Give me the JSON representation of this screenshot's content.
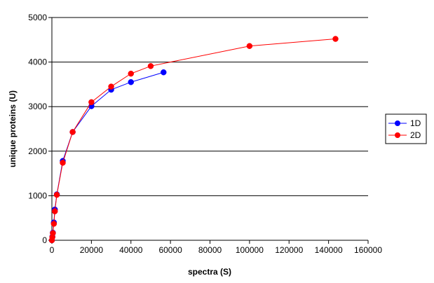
{
  "chart_data": {
    "type": "line",
    "title": "",
    "xlabel": "spectra (S)",
    "ylabel": "unique proteins (U)",
    "xlim": [
      0,
      160000
    ],
    "ylim": [
      0,
      5000
    ],
    "x_ticks": [
      0,
      20000,
      40000,
      60000,
      80000,
      100000,
      120000,
      140000,
      160000
    ],
    "y_ticks": [
      0,
      1000,
      2000,
      3000,
      4000,
      5000
    ],
    "x_tick_labels": [
      "0",
      "20000",
      "40000",
      "60000",
      "80000",
      "100000",
      "120000",
      "140000",
      "160000"
    ],
    "y_tick_labels": [
      "0",
      "1000",
      "2000",
      "3000",
      "4000",
      "5000"
    ],
    "grid": "horizontal major lines",
    "legend_placement": "right",
    "series": [
      {
        "name": "1D",
        "color": "#0000ff",
        "points": [
          [
            0,
            0
          ],
          [
            250,
            80
          ],
          [
            500,
            170
          ],
          [
            1000,
            400
          ],
          [
            1500,
            690
          ],
          [
            2500,
            1030
          ],
          [
            5500,
            1780
          ],
          [
            10500,
            2430
          ],
          [
            20000,
            3010
          ],
          [
            30000,
            3380
          ],
          [
            40000,
            3550
          ],
          [
            56500,
            3770
          ]
        ]
      },
      {
        "name": "2D",
        "color": "#ff0000",
        "points": [
          [
            0,
            0
          ],
          [
            250,
            70
          ],
          [
            500,
            160
          ],
          [
            1000,
            370
          ],
          [
            1500,
            650
          ],
          [
            2500,
            1020
          ],
          [
            5500,
            1740
          ],
          [
            10500,
            2430
          ],
          [
            20000,
            3100
          ],
          [
            30000,
            3450
          ],
          [
            40000,
            3740
          ],
          [
            50000,
            3910
          ],
          [
            100000,
            4360
          ],
          [
            143500,
            4520
          ]
        ]
      }
    ]
  }
}
